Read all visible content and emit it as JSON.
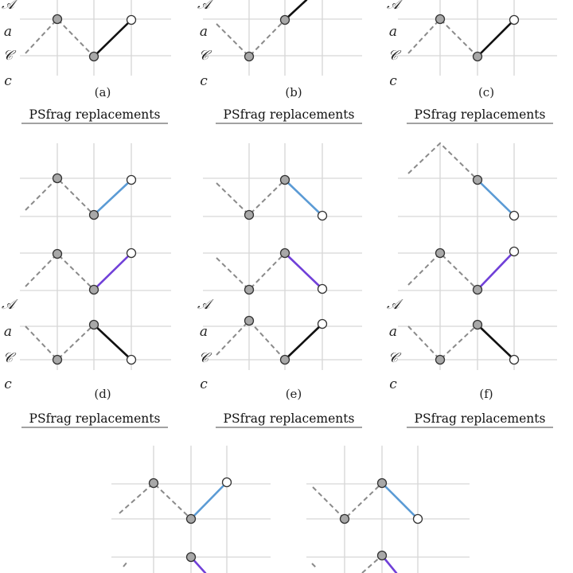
{
  "symbol_labels": [
    "𝒜",
    "a",
    "𝒞",
    "c"
  ],
  "colors": {
    "blue": "#5b9bd5",
    "purple": "#7040d8",
    "black": "#111111",
    "dash": "#8a8a8a",
    "grid": "#d6d6d6"
  },
  "panels": [
    {
      "caption": "(a)",
      "psfrag": "PSfrag replacements"
    },
    {
      "caption": "(b)",
      "psfrag": "PSfrag replacements"
    },
    {
      "caption": "(c)",
      "psfrag": "PSfrag replacements"
    },
    {
      "caption": "(d)",
      "psfrag": "PSfrag replacements"
    },
    {
      "caption": "(e)",
      "psfrag": "PSfrag replacements"
    },
    {
      "caption": "(f)",
      "psfrag": "PSfrag replacements"
    }
  ]
}
